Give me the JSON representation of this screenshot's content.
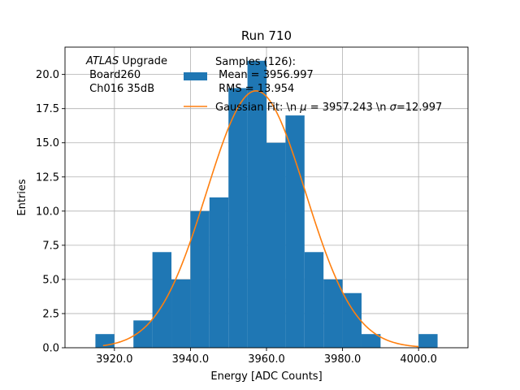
{
  "chart_data": {
    "type": "bar",
    "title": "Run 710",
    "xlabel": "Energy [ADC Counts]",
    "ylabel": "Entries",
    "xlim": [
      3907,
      4013
    ],
    "ylim": [
      0,
      22
    ],
    "grid": true,
    "xticks": [
      3920,
      3940,
      3960,
      3980,
      4000
    ],
    "xtick_labels": [
      "3920.0",
      "3940.0",
      "3960.0",
      "3980.0",
      "4000.0"
    ],
    "yticks": [
      0,
      2.5,
      5,
      7.5,
      10,
      12.5,
      15,
      17.5,
      20
    ],
    "ytick_labels": [
      "0.0",
      "2.5",
      "5.0",
      "7.5",
      "10.0",
      "12.5",
      "15.0",
      "17.5",
      "20.0"
    ],
    "bin_width": 5,
    "bin_starts": [
      3915,
      3920,
      3925,
      3930,
      3935,
      3940,
      3945,
      3950,
      3955,
      3960,
      3965,
      3970,
      3975,
      3980,
      3985,
      3990,
      3995,
      4000
    ],
    "values": [
      1,
      0,
      2,
      7,
      5,
      10,
      11,
      19,
      21,
      15,
      17,
      7,
      5,
      4,
      1,
      0,
      0,
      1
    ],
    "bar_color": "#1f77b4",
    "fit_color": "#ff7f0e",
    "fit": {
      "mu": 3957.243,
      "sigma": 12.997,
      "amplitude": 18.8,
      "x_range": [
        3917,
        4000
      ]
    },
    "annotation": {
      "atlas": "ATLAS",
      "line1_rest": " Upgrade",
      "line2": " Board260",
      "line3": " Ch016 35dB"
    },
    "legend": {
      "position": "top-center",
      "hist_line1": "Samples (126):",
      "hist_line2": " Mean = 3956.997",
      "hist_line3": " RMS = 13.954",
      "fit_prefix": "Gaussian Fit: \\n ",
      "fit_mu_symbol": "μ",
      "fit_mid": " = 3957.243 \\n ",
      "fit_sigma_symbol": "σ",
      "fit_suffix": "=12.997"
    }
  }
}
